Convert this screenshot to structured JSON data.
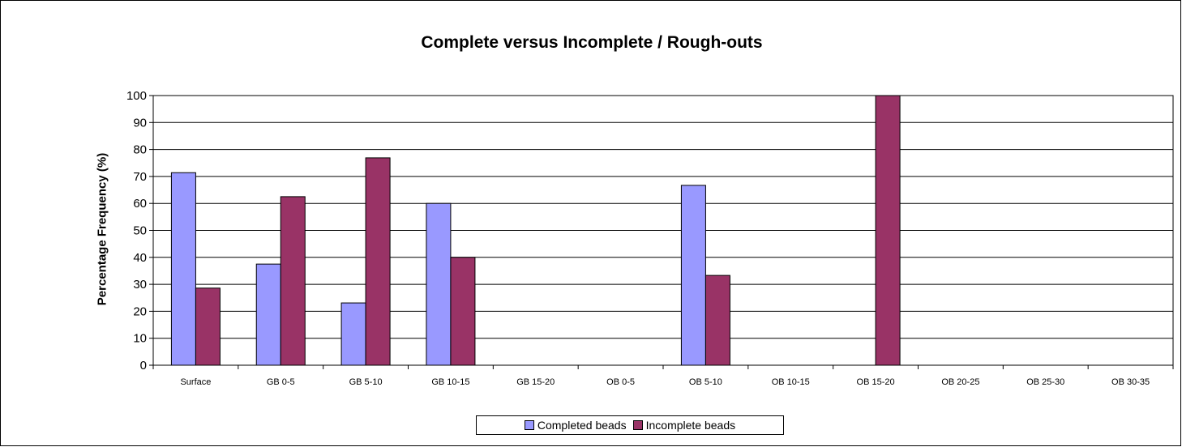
{
  "chart_data": {
    "type": "bar",
    "title": "Complete versus Incomplete / Rough-outs",
    "xlabel": "",
    "ylabel": "Percentage Frequency (%)",
    "ylim": [
      0,
      100
    ],
    "yticks": [
      0,
      10,
      20,
      30,
      40,
      50,
      60,
      70,
      80,
      90,
      100
    ],
    "grid": true,
    "legend_position": "bottom",
    "categories": [
      "Surface",
      "GB 0-5",
      "GB 5-10",
      "GB 10-15",
      "GB 15-20",
      "OB 0-5",
      "OB 5-10",
      "OB 10-15",
      "OB 15-20",
      "OB 20-25",
      "OB 25-30",
      "OB 30-35"
    ],
    "series": [
      {
        "name": "Completed beads",
        "color": "#9999FF",
        "values": [
          71.4,
          37.5,
          23.1,
          60,
          0,
          0,
          66.7,
          0,
          0,
          0,
          0,
          0
        ]
      },
      {
        "name": "Incomplete beads",
        "color": "#993366",
        "values": [
          28.6,
          62.5,
          76.9,
          40,
          0,
          0,
          33.3,
          0,
          100,
          0,
          0,
          0
        ]
      }
    ]
  }
}
